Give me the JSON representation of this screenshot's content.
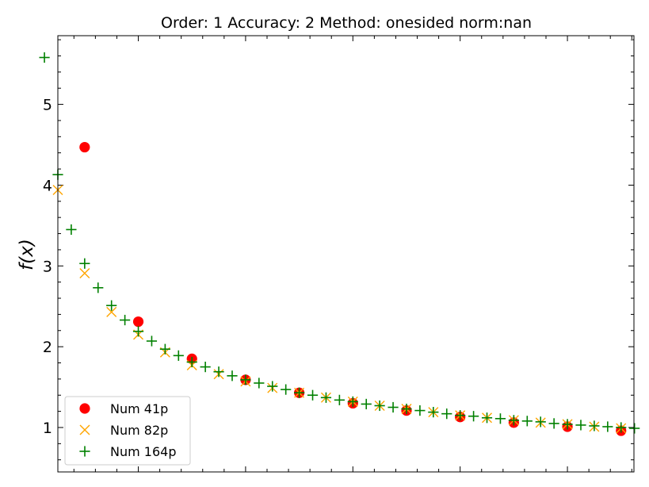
{
  "chart_data": {
    "type": "scatter",
    "title": "Order: 1 Accuracy: 2 Method: onesided norm:nan",
    "xlabel": "",
    "ylabel": "f(x)",
    "xlim": [
      0.125,
      2.81
    ],
    "ylim": [
      0.45,
      5.85
    ],
    "yticks": [
      1,
      2,
      3,
      4,
      5
    ],
    "xticks_major": [
      1,
      2,
      3,
      4,
      5
    ],
    "grid": false,
    "legend_position": "lower-left",
    "series": [
      {
        "name": "Num 41p",
        "marker": "circle",
        "color": "#ff0000",
        "x": [
          0.25,
          0.5,
          0.75,
          1.0,
          1.25,
          1.5,
          1.75,
          2.0,
          2.25,
          2.5,
          2.75
        ],
        "y": [
          4.47,
          2.31,
          1.85,
          1.59,
          1.43,
          1.3,
          1.21,
          1.13,
          1.06,
          1.01,
          0.96
        ]
      },
      {
        "name": "Num 82p",
        "marker": "x",
        "color": "#ffa500",
        "x": [
          0.125,
          0.25,
          0.375,
          0.5,
          0.625,
          0.75,
          0.875,
          1.0,
          1.125,
          1.25,
          1.375,
          1.5,
          1.625,
          1.75,
          1.875,
          2.0,
          2.125,
          2.25,
          2.375,
          2.5,
          2.625,
          2.75
        ],
        "y": [
          3.94,
          2.91,
          2.43,
          2.15,
          1.93,
          1.77,
          1.66,
          1.57,
          1.49,
          1.43,
          1.37,
          1.32,
          1.27,
          1.23,
          1.19,
          1.15,
          1.12,
          1.09,
          1.06,
          1.04,
          1.01,
          0.99
        ]
      },
      {
        "name": "Num 164p",
        "marker": "plus",
        "color": "#008000",
        "x": [
          0.0625,
          0.125,
          0.1875,
          0.25,
          0.3125,
          0.375,
          0.4375,
          0.5,
          0.5625,
          0.625,
          0.6875,
          0.75,
          0.8125,
          0.875,
          0.9375,
          1.0,
          1.0625,
          1.125,
          1.1875,
          1.25,
          1.3125,
          1.375,
          1.4375,
          1.5,
          1.5625,
          1.625,
          1.6875,
          1.75,
          1.8125,
          1.875,
          1.9375,
          2.0,
          2.0625,
          2.125,
          2.1875,
          2.25,
          2.3125,
          2.375,
          2.4375,
          2.5,
          2.5625,
          2.625,
          2.6875,
          2.75,
          2.8125
        ],
        "y": [
          5.58,
          4.13,
          3.45,
          3.03,
          2.73,
          2.51,
          2.33,
          2.19,
          2.07,
          1.97,
          1.89,
          1.81,
          1.75,
          1.69,
          1.64,
          1.59,
          1.55,
          1.51,
          1.47,
          1.43,
          1.4,
          1.37,
          1.34,
          1.32,
          1.29,
          1.27,
          1.25,
          1.23,
          1.21,
          1.19,
          1.17,
          1.15,
          1.14,
          1.12,
          1.11,
          1.09,
          1.08,
          1.07,
          1.05,
          1.04,
          1.03,
          1.02,
          1.01,
          1.0,
          0.99
        ]
      }
    ]
  }
}
